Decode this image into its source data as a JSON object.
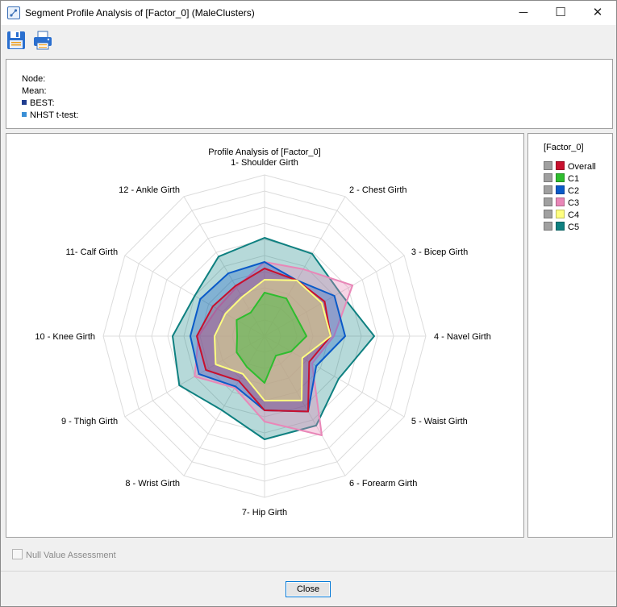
{
  "window": {
    "title": "Segment Profile Analysis of [Factor_0] (MaleClusters)",
    "minimize_glyph": "─",
    "maximize_glyph": "☐",
    "close_glyph": "✕"
  },
  "toolbar": {
    "save_icon": "save-icon",
    "print_icon": "print-icon"
  },
  "info": {
    "node_label": "Node:",
    "mean_label": "Mean:",
    "best_label": "BEST:",
    "nhst_label": "NHST t-test:",
    "best_color": "#1f3d8f",
    "nhst_color": "#3a8fd6"
  },
  "legend": {
    "title": "[Factor_0]",
    "items": [
      {
        "label": "Overall",
        "color": "#c8102e"
      },
      {
        "label": "C1",
        "color": "#2ebd2e"
      },
      {
        "label": "C2",
        "color": "#0a5ac8"
      },
      {
        "label": "C3",
        "color": "#e987b8"
      },
      {
        "label": "C4",
        "color": "#ffff80"
      },
      {
        "label": "C5",
        "color": "#0e8080"
      }
    ]
  },
  "chart_data": {
    "type": "radar",
    "title": "Profile Analysis of [Factor_0]",
    "categories": [
      "1- Shoulder Girth",
      "2 - Chest Girth",
      "3 - Bicep Girth",
      "4 - Navel Girth",
      "5 - Waist Girth",
      "6 - Forearm Girth",
      "7- Hip Girth",
      "8 - Wrist Girth",
      "9 - Thigh Girth",
      "10 - Knee Girth",
      "11- Calf Girth",
      "12 - Ankle Girth"
    ],
    "range": [
      0,
      1
    ],
    "grid_levels": 10,
    "series": [
      {
        "name": "C5",
        "color": "#0e8080",
        "fill_opacity": 0.3,
        "values": [
          0.61,
          0.59,
          0.54,
          0.68,
          0.53,
          0.64,
          0.64,
          0.53,
          0.61,
          0.57,
          0.5,
          0.57
        ]
      },
      {
        "name": "C3",
        "color": "#e987b8",
        "fill_opacity": 0.35,
        "values": [
          0.46,
          0.48,
          0.63,
          0.43,
          0.34,
          0.71,
          0.53,
          0.37,
          0.5,
          0.41,
          0.34,
          0.35
        ]
      },
      {
        "name": "C2",
        "color": "#0a5ac8",
        "fill_opacity": 0.3,
        "values": [
          0.46,
          0.4,
          0.5,
          0.5,
          0.37,
          0.54,
          0.46,
          0.36,
          0.47,
          0.46,
          0.46,
          0.45
        ]
      },
      {
        "name": "Overall",
        "color": "#c8102e",
        "fill_opacity": 0.22,
        "values": [
          0.42,
          0.4,
          0.43,
          0.41,
          0.32,
          0.54,
          0.46,
          0.32,
          0.42,
          0.42,
          0.37,
          0.36
        ]
      },
      {
        "name": "C4",
        "color": "#ffff80",
        "fill_opacity": 0.4,
        "values": [
          0.35,
          0.4,
          0.41,
          0.41,
          0.27,
          0.46,
          0.4,
          0.27,
          0.35,
          0.31,
          0.28,
          0.28
        ]
      },
      {
        "name": "C1",
        "color": "#2ebd2e",
        "fill_opacity": 0.4,
        "values": [
          0.27,
          0.27,
          0.23,
          0.26,
          0.19,
          0.14,
          0.29,
          0.22,
          0.2,
          0.17,
          0.2,
          0.17
        ]
      }
    ]
  },
  "null_value_assessment": {
    "label": "Null Value Assessment",
    "checked": false
  },
  "buttons": {
    "close_label": "Close"
  }
}
